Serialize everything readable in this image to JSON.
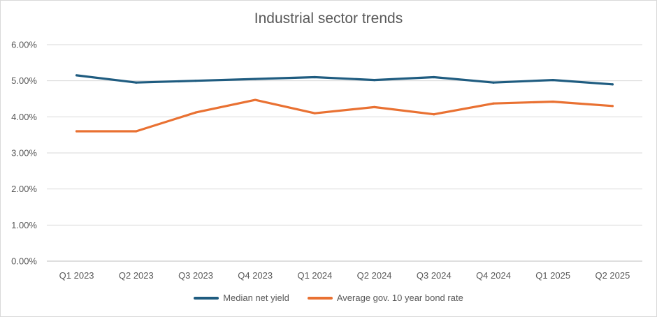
{
  "chart_data": {
    "type": "line",
    "title": "Industrial sector trends",
    "xlabel": "",
    "ylabel": "",
    "categories": [
      "Q1 2023",
      "Q2 2023",
      "Q3 2023",
      "Q4 2023",
      "Q1 2024",
      "Q2 2024",
      "Q3 2024",
      "Q4 2024",
      "Q1 2025",
      "Q2 2025"
    ],
    "ylim": [
      0,
      6
    ],
    "yticks": [
      "0.00%",
      "1.00%",
      "2.00%",
      "3.00%",
      "4.00%",
      "5.00%",
      "6.00%"
    ],
    "grid": true,
    "legend_position": "bottom",
    "series": [
      {
        "name": "Median net yield",
        "color": "#1f5c80",
        "values": [
          5.15,
          4.95,
          5.0,
          5.05,
          5.1,
          5.02,
          5.1,
          4.95,
          5.02,
          4.9
        ]
      },
      {
        "name": "Average gov. 10 year bond rate",
        "color": "#e97132",
        "values": [
          3.6,
          3.6,
          4.12,
          4.47,
          4.1,
          4.27,
          4.07,
          4.37,
          4.42,
          4.3
        ]
      }
    ]
  }
}
